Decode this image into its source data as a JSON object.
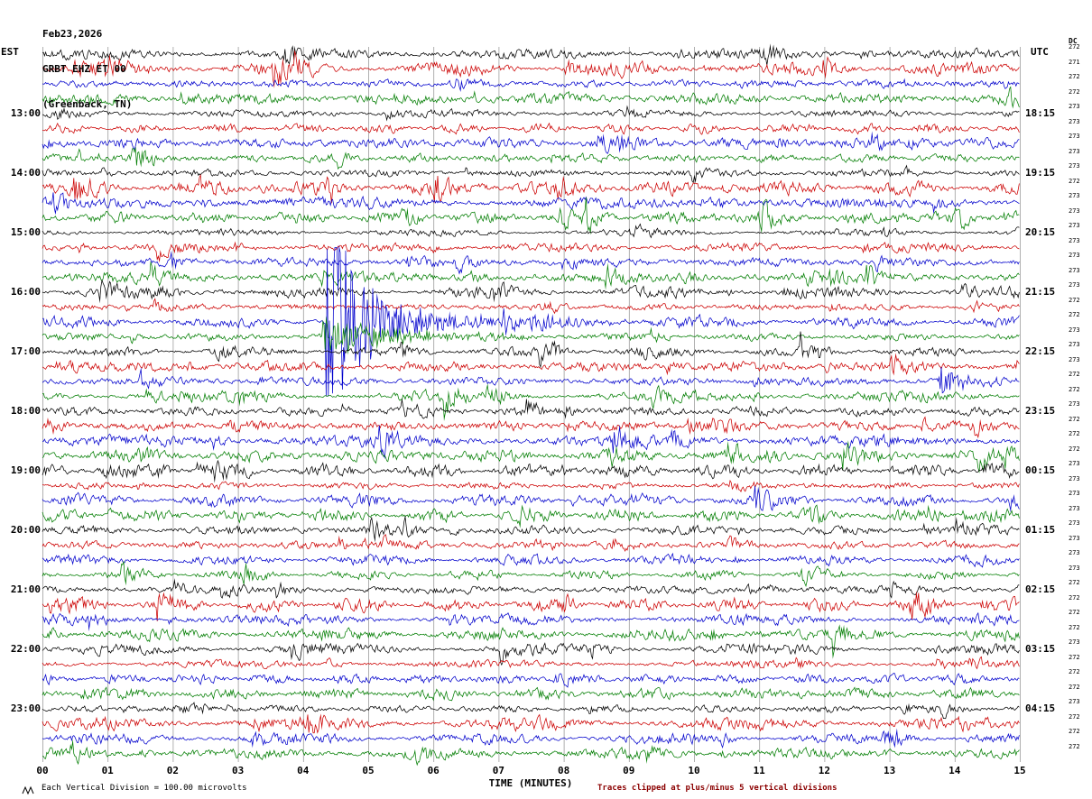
{
  "header": {
    "date": "Feb23,2026",
    "station": "GRBT EHZ ET 00",
    "location": "(Greenback, TN)"
  },
  "axes": {
    "left_label": "EST",
    "right_label": "UTC",
    "dc_label": "DC",
    "x_title": "TIME (MINUTES)",
    "x_ticks": [
      "00",
      "01",
      "02",
      "03",
      "04",
      "05",
      "06",
      "07",
      "08",
      "09",
      "10",
      "11",
      "12",
      "13",
      "14",
      "15"
    ],
    "footer_left": "Each Vertical Division =  100.00 microvolts",
    "footer_right": "Traces clipped at plus/minus 5 vertical divisions"
  },
  "chart_data": {
    "type": "line",
    "kind": "helicorder-seismogram",
    "x_range_minutes": [
      0,
      15
    ],
    "minutes_per_row": 15,
    "row_colors_cycle": [
      "#000000",
      "#cc0000",
      "#0000cc",
      "#007d00"
    ],
    "grid_color": "#9c9c9c",
    "clip_divisions": 5,
    "division_microvolts": 100,
    "rows": [
      {
        "est": "",
        "utc": "",
        "dc": "272"
      },
      {
        "est": "",
        "utc": "",
        "dc": "271"
      },
      {
        "est": "",
        "utc": "",
        "dc": "272"
      },
      {
        "est": "",
        "utc": "",
        "dc": "272"
      },
      {
        "est": "13:00",
        "utc": "18:15",
        "dc": "273"
      },
      {
        "est": "",
        "utc": "",
        "dc": "273"
      },
      {
        "est": "",
        "utc": "",
        "dc": "273"
      },
      {
        "est": "",
        "utc": "",
        "dc": "273"
      },
      {
        "est": "14:00",
        "utc": "19:15",
        "dc": "273"
      },
      {
        "est": "",
        "utc": "",
        "dc": "272"
      },
      {
        "est": "",
        "utc": "",
        "dc": "273"
      },
      {
        "est": "",
        "utc": "",
        "dc": "273"
      },
      {
        "est": "15:00",
        "utc": "20:15",
        "dc": "273"
      },
      {
        "est": "",
        "utc": "",
        "dc": "273"
      },
      {
        "est": "",
        "utc": "",
        "dc": "273"
      },
      {
        "est": "",
        "utc": "",
        "dc": "273"
      },
      {
        "est": "16:00",
        "utc": "21:15",
        "dc": "273"
      },
      {
        "est": "",
        "utc": "",
        "dc": "272"
      },
      {
        "est": "",
        "utc": "",
        "dc": "272"
      },
      {
        "est": "",
        "utc": "",
        "dc": "273"
      },
      {
        "est": "17:00",
        "utc": "22:15",
        "dc": "273"
      },
      {
        "est": "",
        "utc": "",
        "dc": "273"
      },
      {
        "est": "",
        "utc": "",
        "dc": "272"
      },
      {
        "est": "",
        "utc": "",
        "dc": "272"
      },
      {
        "est": "18:00",
        "utc": "23:15",
        "dc": "273"
      },
      {
        "est": "",
        "utc": "",
        "dc": "272"
      },
      {
        "est": "",
        "utc": "",
        "dc": "272"
      },
      {
        "est": "",
        "utc": "",
        "dc": "272"
      },
      {
        "est": "19:00",
        "utc": "00:15",
        "dc": "273"
      },
      {
        "est": "",
        "utc": "",
        "dc": "273"
      },
      {
        "est": "",
        "utc": "",
        "dc": "273"
      },
      {
        "est": "",
        "utc": "",
        "dc": "273"
      },
      {
        "est": "20:00",
        "utc": "01:15",
        "dc": "273"
      },
      {
        "est": "",
        "utc": "",
        "dc": "273"
      },
      {
        "est": "",
        "utc": "",
        "dc": "273"
      },
      {
        "est": "",
        "utc": "",
        "dc": "273"
      },
      {
        "est": "21:00",
        "utc": "02:15",
        "dc": "272"
      },
      {
        "est": "",
        "utc": "",
        "dc": "272"
      },
      {
        "est": "",
        "utc": "",
        "dc": "272"
      },
      {
        "est": "",
        "utc": "",
        "dc": "272"
      },
      {
        "est": "22:00",
        "utc": "03:15",
        "dc": "273"
      },
      {
        "est": "",
        "utc": "",
        "dc": "272"
      },
      {
        "est": "",
        "utc": "",
        "dc": "272"
      },
      {
        "est": "",
        "utc": "",
        "dc": "272"
      },
      {
        "est": "23:00",
        "utc": "04:15",
        "dc": "273"
      },
      {
        "est": "",
        "utc": "",
        "dc": "272"
      },
      {
        "est": "",
        "utc": "",
        "dc": "272"
      },
      {
        "est": "",
        "utc": "",
        "dc": "272"
      }
    ],
    "events": [
      {
        "row_index": 18,
        "est_time": "16:30",
        "start_minute": 4.35,
        "amplitude_divisions": 8,
        "decay_minutes": 0.45,
        "tail_minutes": 2.0,
        "note": "large clipped seismic event on blue trace"
      },
      {
        "row_index": 19,
        "est_time": "16:45",
        "start_minute": 4.3,
        "amplitude_divisions": 1.6,
        "decay_minutes": 1.0,
        "note": "coda continues on following green trace"
      },
      {
        "row_index": 7,
        "est_time": "13:45",
        "start_minute": 1.35,
        "amplitude_divisions": 0.9,
        "decay_minutes": 0.25,
        "note": "small burst"
      },
      {
        "row_index": 22,
        "est_time": "17:30",
        "start_minute": 13.75,
        "amplitude_divisions": 1.1,
        "decay_minutes": 0.3,
        "note": "small blue event near end of row"
      }
    ],
    "noise": {
      "base_amplitude_divisions": 0.22,
      "row_amplitude_variation": [
        0.75,
        1.6
      ],
      "seed": 20260223
    }
  }
}
